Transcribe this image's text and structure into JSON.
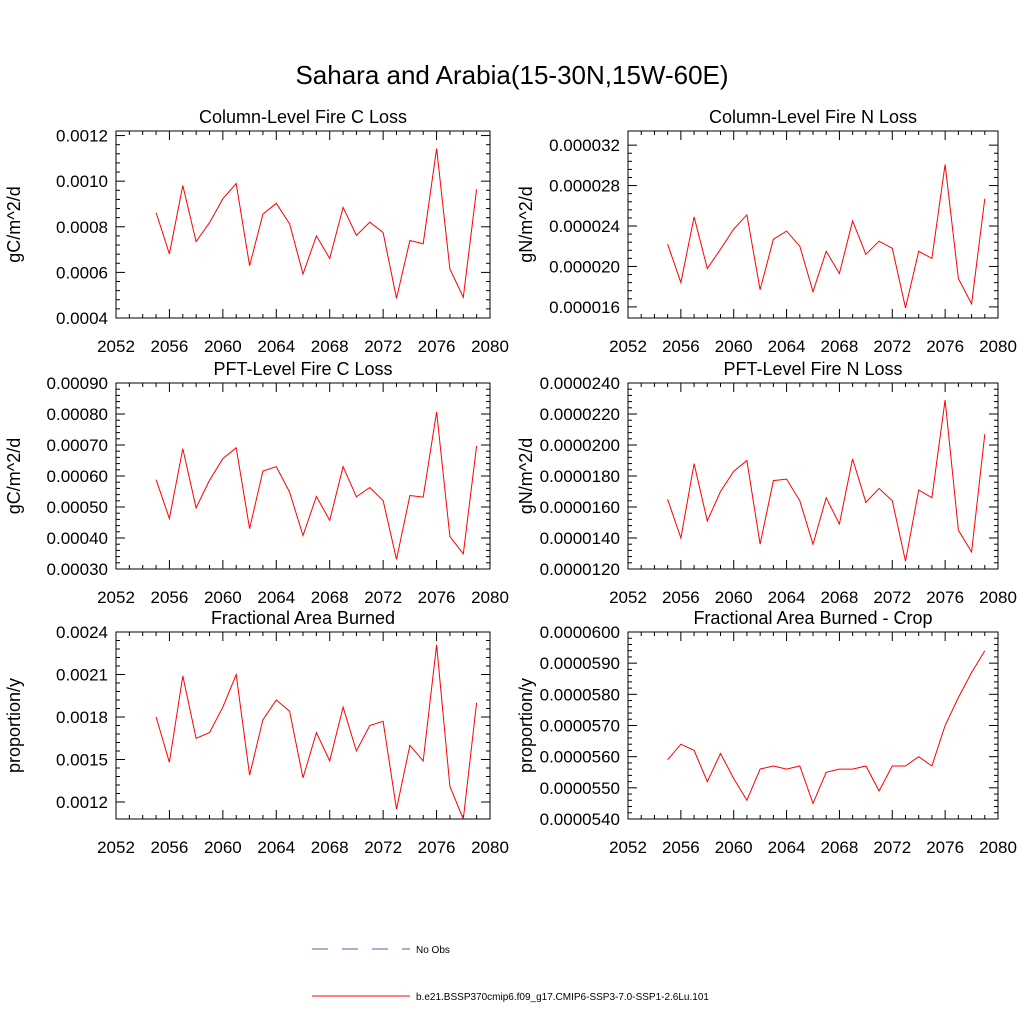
{
  "title": "Sahara and Arabia(15-30N,15W-60E)",
  "legend": {
    "entries": [
      {
        "label": "No Obs",
        "color": "#5a5aa8",
        "dash": true
      },
      {
        "label": "b.e21.BSSP370cmip6.f09_g17.CMIP6-SSP3-7.0-SSP1-2.6Lu.101",
        "color": "#ff0000",
        "dash": false
      }
    ]
  },
  "chart_data": [
    {
      "type": "line",
      "title": "Column-Level Fire C Loss",
      "ylabel": "gC/m^2/d",
      "xlim": [
        2052,
        2080
      ],
      "ylim": [
        0.0004,
        0.00122
      ],
      "xticks": [
        "2052",
        "2056",
        "2060",
        "2064",
        "2068",
        "2072",
        "2076",
        "2080"
      ],
      "yticks": [
        {
          "v": 0.0004,
          "label": "0.0004"
        },
        {
          "v": 0.0006,
          "label": "0.0006"
        },
        {
          "v": 0.0008,
          "label": "0.0008"
        },
        {
          "v": 0.001,
          "label": "0.0010"
        },
        {
          "v": 0.0012,
          "label": "0.0012"
        }
      ],
      "color": "#ff0000",
      "x": [
        2055,
        2056,
        2057,
        2058,
        2059,
        2060,
        2061,
        2062,
        2063,
        2064,
        2065,
        2066,
        2067,
        2068,
        2069,
        2070,
        2071,
        2072,
        2073,
        2074,
        2075,
        2076,
        2077,
        2078,
        2079
      ],
      "y": [
        0.000862,
        0.000681,
        0.000981,
        0.000735,
        0.000818,
        0.000923,
        0.00099,
        0.000629,
        0.000855,
        0.000903,
        0.000813,
        0.000593,
        0.00076,
        0.000661,
        0.000885,
        0.000762,
        0.00082,
        0.000775,
        0.000486,
        0.00074,
        0.000726,
        0.001143,
        0.000615,
        0.000491,
        0.000965
      ]
    },
    {
      "type": "line",
      "title": "Column-Level Fire N Loss",
      "ylabel": "gN/m^2/d",
      "xlim": [
        2052,
        2080
      ],
      "ylim": [
        1.49e-05,
        3.34e-05
      ],
      "xticks": [
        "2052",
        "2056",
        "2060",
        "2064",
        "2068",
        "2072",
        "2076",
        "2080"
      ],
      "yticks": [
        {
          "v": 1.6e-05,
          "label": "0.000016"
        },
        {
          "v": 2e-05,
          "label": "0.000020"
        },
        {
          "v": 2.4e-05,
          "label": "0.000024"
        },
        {
          "v": 2.8e-05,
          "label": "0.000028"
        },
        {
          "v": 3.2e-05,
          "label": "0.000032"
        }
      ],
      "color": "#ff0000",
      "x": [
        2055,
        2056,
        2057,
        2058,
        2059,
        2060,
        2061,
        2062,
        2063,
        2064,
        2065,
        2066,
        2067,
        2068,
        2069,
        2070,
        2071,
        2072,
        2073,
        2074,
        2075,
        2076,
        2077,
        2078,
        2079
      ],
      "y": [
        2.22e-05,
        1.84e-05,
        2.49e-05,
        1.98e-05,
        2.17e-05,
        2.37e-05,
        2.51e-05,
        1.77e-05,
        2.27e-05,
        2.35e-05,
        2.2e-05,
        1.75e-05,
        2.15e-05,
        1.93e-05,
        2.45e-05,
        2.12e-05,
        2.25e-05,
        2.18e-05,
        1.59e-05,
        2.15e-05,
        2.08e-05,
        3.01e-05,
        1.88e-05,
        1.63e-05,
        2.67e-05
      ]
    },
    {
      "type": "line",
      "title": "PFT-Level Fire C Loss",
      "ylabel": "gC/m^2/d",
      "xlim": [
        2052,
        2080
      ],
      "ylim": [
        0.0003,
        0.0009
      ],
      "xticks": [
        "2052",
        "2056",
        "2060",
        "2064",
        "2068",
        "2072",
        "2076",
        "2080"
      ],
      "yticks": [
        {
          "v": 0.0003,
          "label": "0.00030"
        },
        {
          "v": 0.0004,
          "label": "0.00040"
        },
        {
          "v": 0.0005,
          "label": "0.00050"
        },
        {
          "v": 0.0006,
          "label": "0.00060"
        },
        {
          "v": 0.0007,
          "label": "0.00070"
        },
        {
          "v": 0.0008,
          "label": "0.00080"
        },
        {
          "v": 0.0009,
          "label": "0.00090"
        }
      ],
      "color": "#ff0000",
      "x": [
        2055,
        2056,
        2057,
        2058,
        2059,
        2060,
        2061,
        2062,
        2063,
        2064,
        2065,
        2066,
        2067,
        2068,
        2069,
        2070,
        2071,
        2072,
        2073,
        2074,
        2075,
        2076,
        2077,
        2078,
        2079
      ],
      "y": [
        0.000588,
        0.000463,
        0.000688,
        0.000497,
        0.000586,
        0.000656,
        0.000691,
        0.00043,
        0.000616,
        0.00063,
        0.000548,
        0.000408,
        0.000534,
        0.000457,
        0.00063,
        0.000533,
        0.000563,
        0.000521,
        0.000331,
        0.000537,
        0.000532,
        0.000807,
        0.000405,
        0.000349,
        0.000697
      ]
    },
    {
      "type": "line",
      "title": "PFT-Level Fire N Loss",
      "ylabel": "gN/m^2/d",
      "xlim": [
        2052,
        2080
      ],
      "ylim": [
        1.2e-05,
        2.4e-05
      ],
      "xticks": [
        "2052",
        "2056",
        "2060",
        "2064",
        "2068",
        "2072",
        "2076",
        "2080"
      ],
      "yticks": [
        {
          "v": 1.2e-05,
          "label": "0.0000120"
        },
        {
          "v": 1.4e-05,
          "label": "0.0000140"
        },
        {
          "v": 1.6e-05,
          "label": "0.0000160"
        },
        {
          "v": 1.8e-05,
          "label": "0.0000180"
        },
        {
          "v": 2e-05,
          "label": "0.0000200"
        },
        {
          "v": 2.2e-05,
          "label": "0.0000220"
        },
        {
          "v": 2.4e-05,
          "label": "0.0000240"
        }
      ],
      "color": "#ff0000",
      "x": [
        2055,
        2056,
        2057,
        2058,
        2059,
        2060,
        2061,
        2062,
        2063,
        2064,
        2065,
        2066,
        2067,
        2068,
        2069,
        2070,
        2071,
        2072,
        2073,
        2074,
        2075,
        2076,
        2077,
        2078,
        2079
      ],
      "y": [
        1.65e-05,
        1.4e-05,
        1.88e-05,
        1.51e-05,
        1.7e-05,
        1.83e-05,
        1.9e-05,
        1.36e-05,
        1.77e-05,
        1.78e-05,
        1.64e-05,
        1.36e-05,
        1.66e-05,
        1.49e-05,
        1.91e-05,
        1.63e-05,
        1.72e-05,
        1.64e-05,
        1.25e-05,
        1.71e-05,
        1.66e-05,
        2.29e-05,
        1.45e-05,
        1.31e-05,
        2.07e-05
      ]
    },
    {
      "type": "line",
      "title": "Fractional Area Burned",
      "ylabel": "proportion/y",
      "xlim": [
        2052,
        2080
      ],
      "ylim": [
        0.00108,
        0.0024
      ],
      "xticks": [
        "2052",
        "2056",
        "2060",
        "2064",
        "2068",
        "2072",
        "2076",
        "2080"
      ],
      "yticks": [
        {
          "v": 0.0012,
          "label": "0.0012"
        },
        {
          "v": 0.0015,
          "label": "0.0015"
        },
        {
          "v": 0.0018,
          "label": "0.0018"
        },
        {
          "v": 0.0021,
          "label": "0.0021"
        },
        {
          "v": 0.0024,
          "label": "0.0024"
        }
      ],
      "color": "#ff0000",
      "x": [
        2055,
        2056,
        2057,
        2058,
        2059,
        2060,
        2061,
        2062,
        2063,
        2064,
        2065,
        2066,
        2067,
        2068,
        2069,
        2070,
        2071,
        2072,
        2073,
        2074,
        2075,
        2076,
        2077,
        2078,
        2079
      ],
      "y": [
        0.0018,
        0.00148,
        0.00209,
        0.00165,
        0.00169,
        0.00187,
        0.0021,
        0.00139,
        0.00178,
        0.00192,
        0.00184,
        0.00137,
        0.00169,
        0.00149,
        0.00187,
        0.00156,
        0.00174,
        0.00177,
        0.00115,
        0.0016,
        0.00149,
        0.00231,
        0.00131,
        0.00108,
        0.0019
      ]
    },
    {
      "type": "line",
      "title": "Fractional Area Burned - Crop",
      "ylabel": "proportion/y",
      "xlim": [
        2052,
        2080
      ],
      "ylim": [
        5.4e-05,
        6e-05
      ],
      "xticks": [
        "2052",
        "2056",
        "2060",
        "2064",
        "2068",
        "2072",
        "2076",
        "2080"
      ],
      "yticks": [
        {
          "v": 5.4e-05,
          "label": "0.0000540"
        },
        {
          "v": 5.5e-05,
          "label": "0.0000550"
        },
        {
          "v": 5.6e-05,
          "label": "0.0000560"
        },
        {
          "v": 5.7e-05,
          "label": "0.0000570"
        },
        {
          "v": 5.8e-05,
          "label": "0.0000580"
        },
        {
          "v": 5.9e-05,
          "label": "0.0000590"
        },
        {
          "v": 6e-05,
          "label": "0.0000600"
        }
      ],
      "color": "#ff0000",
      "x": [
        2055,
        2056,
        2057,
        2058,
        2059,
        2060,
        2061,
        2062,
        2063,
        2064,
        2065,
        2066,
        2067,
        2068,
        2069,
        2070,
        2071,
        2072,
        2073,
        2074,
        2075,
        2076,
        2077,
        2078,
        2079
      ],
      "y": [
        5.59e-05,
        5.64e-05,
        5.62e-05,
        5.52e-05,
        5.61e-05,
        5.53e-05,
        5.46e-05,
        5.56e-05,
        5.57e-05,
        5.56e-05,
        5.57e-05,
        5.45e-05,
        5.55e-05,
        5.56e-05,
        5.56e-05,
        5.57e-05,
        5.49e-05,
        5.57e-05,
        5.57e-05,
        5.6e-05,
        5.57e-05,
        5.7e-05,
        5.79e-05,
        5.87e-05,
        5.94e-05
      ]
    }
  ]
}
